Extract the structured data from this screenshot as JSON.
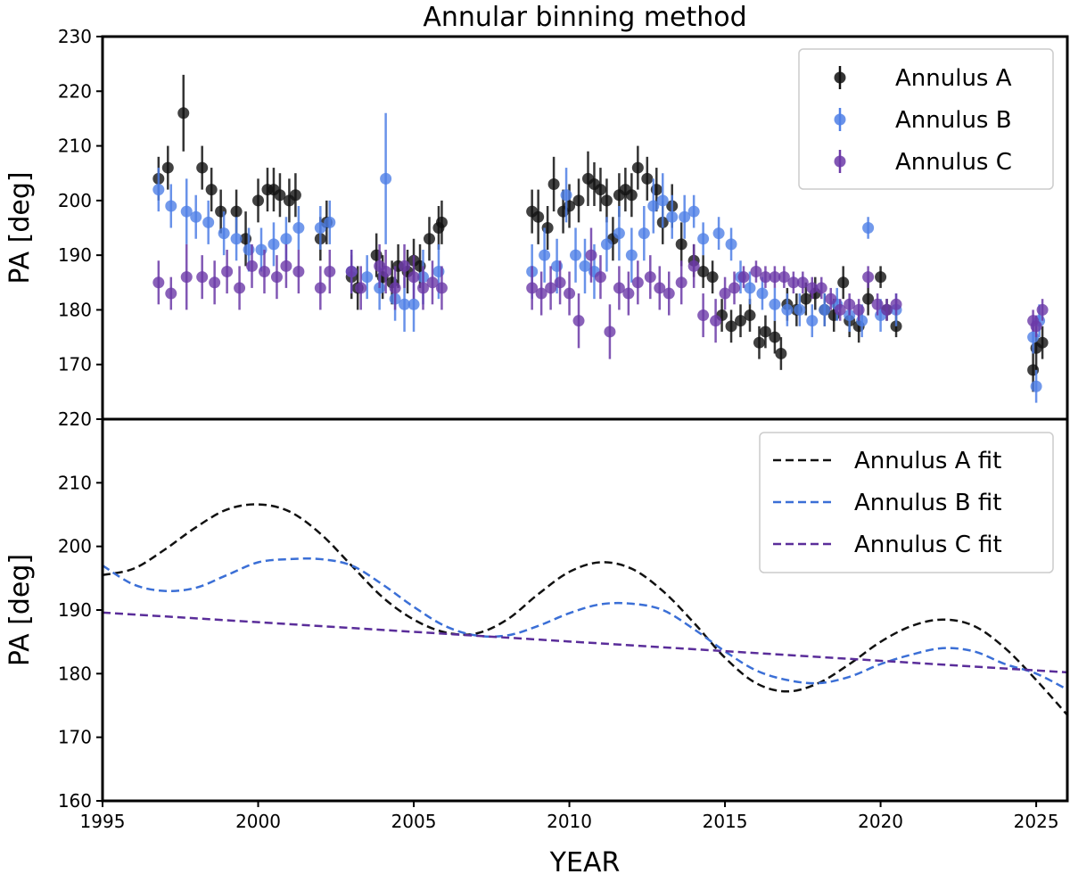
{
  "chart_data": [
    {
      "type": "scatter",
      "title": "Annular binning method",
      "xlabel": "",
      "ylabel": "PA [deg]",
      "xlim": [
        1995,
        2026
      ],
      "ylim": [
        160,
        230
      ],
      "ytick_labels": [
        "170",
        "180",
        "190",
        "200",
        "210",
        "220",
        "230"
      ],
      "legend_position": "top-right",
      "series": [
        {
          "name": "Annulus A",
          "color": "#111111",
          "x": [
            1996.8,
            1997.1,
            1997.6,
            1998.2,
            1998.5,
            1998.8,
            1999.3,
            1999.6,
            2000.0,
            2000.3,
            2000.5,
            2000.7,
            2001.0,
            2001.2,
            2002.0,
            2002.2,
            2003.0,
            2003.2,
            2003.8,
            2004.0,
            2004.3,
            2004.5,
            2004.8,
            2005.0,
            2005.2,
            2005.5,
            2005.8,
            2005.9,
            2008.8,
            2009.0,
            2009.3,
            2009.5,
            2009.8,
            2010.0,
            2010.3,
            2010.6,
            2010.8,
            2011.0,
            2011.2,
            2011.4,
            2011.6,
            2011.8,
            2012.0,
            2012.2,
            2012.5,
            2012.8,
            2013.0,
            2013.3,
            2013.6,
            2014.0,
            2014.3,
            2014.6,
            2014.9,
            2015.2,
            2015.5,
            2015.8,
            2016.1,
            2016.3,
            2016.6,
            2016.8,
            2017.0,
            2017.3,
            2017.6,
            2017.9,
            2018.2,
            2018.5,
            2018.8,
            2019.0,
            2019.3,
            2019.6,
            2020.0,
            2020.2,
            2020.5,
            2024.9,
            2025.0,
            2025.2
          ],
          "y": [
            204,
            206,
            216,
            206,
            202,
            198,
            198,
            193,
            200,
            202,
            202,
            201,
            200,
            201,
            193,
            196,
            186,
            184,
            190,
            186,
            185,
            188,
            187,
            189,
            188,
            193,
            195,
            196,
            198,
            197,
            195,
            203,
            198,
            199,
            200,
            204,
            203,
            202,
            200,
            193,
            201,
            202,
            201,
            206,
            204,
            202,
            196,
            199,
            192,
            189,
            187,
            186,
            179,
            177,
            178,
            179,
            174,
            176,
            175,
            172,
            181,
            180,
            182,
            183,
            180,
            179,
            185,
            178,
            177,
            182,
            186,
            180,
            177,
            169,
            173,
            174
          ],
          "err": [
            4,
            4,
            7,
            4,
            4,
            4,
            4,
            5,
            4,
            4,
            4,
            4,
            4,
            4,
            4,
            4,
            4,
            4,
            4,
            4,
            4,
            4,
            4,
            4,
            4,
            4,
            4,
            4,
            4,
            5,
            4,
            5,
            4,
            4,
            4,
            5,
            4,
            4,
            4,
            4,
            4,
            4,
            4,
            4,
            4,
            4,
            4,
            4,
            4,
            3,
            3,
            3,
            3,
            3,
            3,
            3,
            3,
            3,
            3,
            3,
            3,
            3,
            3,
            3,
            3,
            3,
            3,
            3,
            3,
            3,
            2,
            2,
            2,
            4,
            4,
            3
          ]
        },
        {
          "name": "Annulus B",
          "color": "#4f7fe6",
          "x": [
            1996.8,
            1997.2,
            1997.7,
            1998.0,
            1998.4,
            1998.9,
            1999.3,
            1999.7,
            2000.1,
            2000.5,
            2000.9,
            2001.3,
            2002.0,
            2002.3,
            2003.0,
            2003.5,
            2003.9,
            2004.1,
            2004.4,
            2004.7,
            2005.0,
            2005.3,
            2005.8,
            2008.8,
            2009.2,
            2009.6,
            2009.9,
            2010.2,
            2010.5,
            2010.8,
            2011.2,
            2011.6,
            2012.0,
            2012.4,
            2012.7,
            2013.0,
            2013.3,
            2013.7,
            2014.0,
            2014.3,
            2014.8,
            2015.2,
            2015.5,
            2015.8,
            2016.2,
            2016.6,
            2017.0,
            2017.4,
            2017.8,
            2018.2,
            2018.6,
            2019.0,
            2019.4,
            2019.6,
            2020.0,
            2020.5,
            2024.9,
            2025.0,
            2025.1
          ],
          "y": [
            202,
            199,
            198,
            197,
            196,
            194,
            193,
            191,
            191,
            192,
            193,
            195,
            195,
            196,
            187,
            186,
            184,
            204,
            182,
            181,
            181,
            186,
            187,
            187,
            190,
            188,
            201,
            190,
            188,
            187,
            192,
            194,
            190,
            194,
            199,
            200,
            197,
            197,
            198,
            193,
            194,
            192,
            186,
            184,
            183,
            181,
            180,
            180,
            178,
            180,
            181,
            179,
            178,
            195,
            179,
            180,
            175,
            166,
            178
          ],
          "err": [
            4,
            4,
            6,
            4,
            4,
            4,
            4,
            4,
            4,
            4,
            4,
            4,
            4,
            4,
            4,
            4,
            4,
            12,
            4,
            5,
            5,
            5,
            5,
            5,
            5,
            5,
            5,
            5,
            5,
            5,
            5,
            5,
            5,
            5,
            5,
            5,
            4,
            4,
            3,
            3,
            3,
            3,
            3,
            3,
            3,
            3,
            3,
            3,
            3,
            3,
            3,
            3,
            3,
            2,
            3,
            3,
            3,
            3,
            3
          ]
        },
        {
          "name": "Annulus C",
          "color": "#6c3aa8",
          "x": [
            1996.8,
            1997.2,
            1997.7,
            1998.2,
            1998.6,
            1999.0,
            1999.4,
            1999.8,
            2000.2,
            2000.6,
            2000.9,
            2001.3,
            2002.0,
            2002.3,
            2003.0,
            2003.3,
            2003.9,
            2004.1,
            2004.4,
            2004.7,
            2005.0,
            2005.3,
            2005.6,
            2005.9,
            2008.8,
            2009.1,
            2009.4,
            2009.7,
            2010.0,
            2010.3,
            2010.7,
            2011.0,
            2011.3,
            2011.6,
            2011.9,
            2012.2,
            2012.6,
            2012.9,
            2013.2,
            2013.6,
            2014.0,
            2014.3,
            2014.7,
            2015.0,
            2015.3,
            2015.6,
            2016.0,
            2016.3,
            2016.6,
            2016.9,
            2017.2,
            2017.5,
            2017.8,
            2018.1,
            2018.4,
            2018.7,
            2019.0,
            2019.3,
            2019.6,
            2019.9,
            2020.2,
            2020.5,
            2024.9,
            2025.0,
            2025.2
          ],
          "y": [
            185,
            183,
            186,
            186,
            185,
            187,
            184,
            188,
            187,
            186,
            188,
            187,
            184,
            187,
            187,
            184,
            188,
            187,
            184,
            188,
            186,
            184,
            185,
            184,
            184,
            183,
            184,
            185,
            183,
            178,
            190,
            186,
            176,
            184,
            183,
            185,
            186,
            184,
            183,
            185,
            188,
            179,
            178,
            183,
            184,
            186,
            187,
            186,
            186,
            186,
            185,
            185,
            184,
            184,
            182,
            180,
            181,
            180,
            186,
            181,
            180,
            181,
            178,
            177,
            180
          ],
          "err": [
            4,
            3,
            6,
            4,
            4,
            4,
            4,
            4,
            4,
            4,
            4,
            4,
            4,
            4,
            4,
            4,
            4,
            4,
            4,
            4,
            4,
            4,
            4,
            4,
            4,
            4,
            4,
            4,
            4,
            5,
            5,
            4,
            5,
            4,
            4,
            4,
            4,
            4,
            4,
            4,
            4,
            4,
            4,
            3,
            3,
            2,
            2,
            2,
            2,
            2,
            2,
            2,
            2,
            2,
            2,
            2,
            2,
            2,
            2,
            2,
            2,
            2,
            2,
            2,
            2
          ]
        }
      ]
    },
    {
      "type": "line",
      "xlabel": "YEAR",
      "ylabel": "PA [deg]",
      "xlim": [
        1995,
        2026
      ],
      "ylim": [
        160,
        220
      ],
      "xtick_labels": [
        "1995",
        "2000",
        "2005",
        "2010",
        "2015",
        "2020",
        "2025"
      ],
      "ytick_labels": [
        "160",
        "170",
        "180",
        "190",
        "200",
        "210",
        "220"
      ],
      "legend_position": "top-right",
      "series": [
        {
          "name": "Annulus A fit",
          "color": "#111111",
          "x": [
            1995,
            1996,
            1997,
            1998,
            1999,
            2000,
            2001,
            2002,
            2003,
            2004,
            2005,
            2006,
            2007,
            2008,
            2009,
            2010,
            2011,
            2012,
            2013,
            2014,
            2015,
            2016,
            2017,
            2018,
            2019,
            2020,
            2021,
            2022,
            2023,
            2024,
            2025,
            2026
          ],
          "y": [
            195.5,
            196.5,
            199.5,
            203,
            205.8,
            206.6,
            205.5,
            202,
            197,
            192,
            188.5,
            186.5,
            186.3,
            188.5,
            192.5,
            196,
            197.5,
            196.5,
            193,
            188,
            182.5,
            178.5,
            177.2,
            178.5,
            181.5,
            185,
            187.5,
            188.5,
            187.5,
            184,
            179,
            173.5
          ]
        },
        {
          "name": "Annulus B fit",
          "color": "#3b6fd6",
          "x": [
            1995,
            1996,
            1997,
            1998,
            1999,
            2000,
            2001,
            2002,
            2003,
            2004,
            2005,
            2006,
            2007,
            2008,
            2009,
            2010,
            2011,
            2012,
            2013,
            2014,
            2015,
            2016,
            2017,
            2018,
            2019,
            2020,
            2021,
            2022,
            2023,
            2024,
            2025,
            2026
          ],
          "y": [
            197,
            194,
            193,
            193.5,
            195.5,
            197.5,
            198,
            198,
            197,
            194,
            190.5,
            187.5,
            186,
            186,
            187.5,
            189.5,
            190.9,
            191,
            190,
            187,
            183.5,
            180.5,
            179,
            178.5,
            179.5,
            181.5,
            183,
            184,
            183.5,
            181.5,
            180,
            177.5
          ]
        },
        {
          "name": "Annulus C fit",
          "color": "#5a2d9a",
          "x": [
            1995,
            2026
          ],
          "y": [
            189.6,
            180.2
          ]
        }
      ]
    }
  ]
}
